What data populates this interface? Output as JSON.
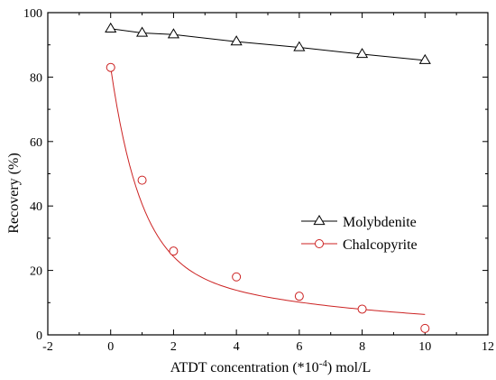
{
  "chart_data": {
    "type": "line",
    "xlabel": "ATDT concentration (*10-4) mol/L",
    "xlabel_parts": {
      "before": "ATDT concentration (*10",
      "sup": "-4",
      "after": ") mol/L"
    },
    "ylabel": "Recovery (%)",
    "xlim": [
      -2,
      12
    ],
    "ylim": [
      0,
      100
    ],
    "x_ticks": [
      -2,
      0,
      2,
      4,
      6,
      8,
      10,
      12
    ],
    "y_ticks": [
      0,
      20,
      40,
      60,
      80,
      100
    ],
    "grid": false,
    "legend_position": "center-right",
    "series": [
      {
        "name": "Molybdenite",
        "marker": "triangle",
        "color": "#000000",
        "x": [
          0,
          1,
          2,
          4,
          6,
          8,
          10
        ],
        "values": [
          95,
          93.7,
          93.2,
          91,
          89.2,
          87.1,
          85.2
        ]
      },
      {
        "name": "Chalcopyrite",
        "marker": "circle",
        "color": "#cc2222",
        "x": [
          0,
          1,
          2,
          4,
          6,
          8,
          10
        ],
        "values": [
          83,
          48,
          26,
          18,
          12,
          8,
          2
        ]
      }
    ]
  }
}
